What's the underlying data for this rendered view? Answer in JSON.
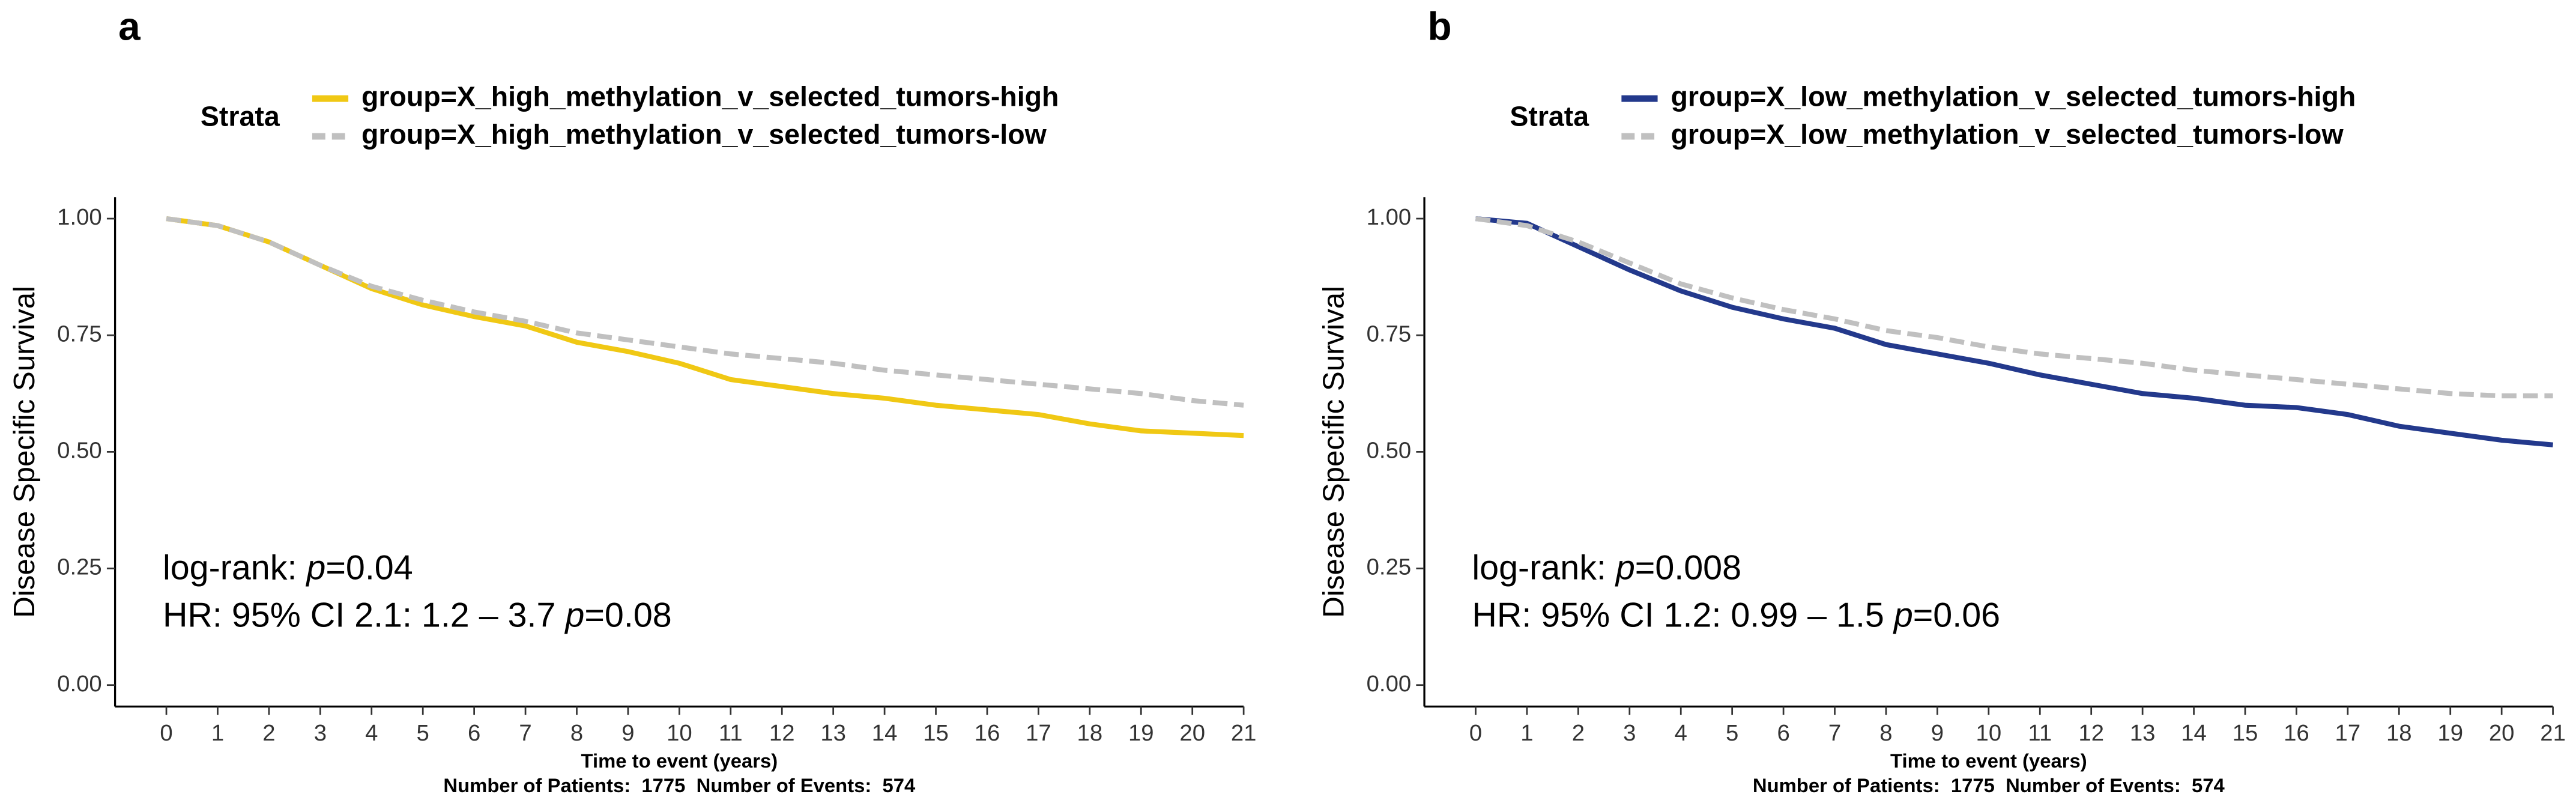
{
  "chart_data": [
    {
      "type": "line",
      "panel_label": "a",
      "legend_title": "Strata",
      "xlabel": "Time to event (years)",
      "ylabel": "Disease Specific Survival",
      "caption": "Number of Patients:  1775  Number of Events:  574",
      "annotations": [
        [
          "log-rank: ",
          "p",
          "=0.04"
        ],
        [
          "HR: 95% CI 2.1: 1.2 – 3.7 ",
          "p",
          "=0.08"
        ]
      ],
      "x": [
        0,
        1,
        2,
        3,
        4,
        5,
        6,
        7,
        8,
        9,
        10,
        11,
        12,
        13,
        14,
        15,
        16,
        17,
        18,
        19,
        20,
        21
      ],
      "series": [
        {
          "name": "group=X_high_methylation_v_selected_tumors-high",
          "color": "#f0c814",
          "linestyle": "solid",
          "values": [
            1.0,
            0.985,
            0.95,
            0.9,
            0.85,
            0.815,
            0.79,
            0.77,
            0.735,
            0.715,
            0.69,
            0.655,
            0.64,
            0.625,
            0.615,
            0.6,
            0.59,
            0.58,
            0.56,
            0.545,
            0.54,
            0.535
          ]
        },
        {
          "name": "group=X_high_methylation_v_selected_tumors-low",
          "color": "#c0c0c0",
          "linestyle": "dashed",
          "values": [
            1.0,
            0.985,
            0.95,
            0.9,
            0.855,
            0.825,
            0.8,
            0.78,
            0.755,
            0.74,
            0.725,
            0.71,
            0.7,
            0.69,
            0.675,
            0.665,
            0.655,
            0.645,
            0.635,
            0.625,
            0.61,
            0.6
          ]
        }
      ],
      "xlim": [
        -1,
        21
      ],
      "ylim": [
        -0.046,
        1.046
      ],
      "xticks": [
        0,
        1,
        2,
        3,
        4,
        5,
        6,
        7,
        8,
        9,
        10,
        11,
        12,
        13,
        14,
        15,
        16,
        17,
        18,
        19,
        20,
        21
      ],
      "yticks": [
        {
          "value": 0,
          "label": "0.00"
        },
        {
          "value": 0.25,
          "label": "0.25"
        },
        {
          "value": 0.5,
          "label": "0.50"
        },
        {
          "value": 0.75,
          "label": "0.75"
        },
        {
          "value": 1,
          "label": "1.00"
        }
      ]
    },
    {
      "type": "line",
      "panel_label": "b",
      "legend_title": "Strata",
      "xlabel": "Time to event (years)",
      "ylabel": "Disease Specific Survival",
      "caption": "Number of Patients:  1775  Number of Events:  574",
      "annotations": [
        [
          "log-rank: ",
          "p",
          "=0.008"
        ],
        [
          "HR: 95% CI 1.2: 0.99 – 1.5 ",
          "p",
          "=0.06"
        ]
      ],
      "x": [
        0,
        1,
        2,
        3,
        4,
        5,
        6,
        7,
        8,
        9,
        10,
        11,
        12,
        13,
        14,
        15,
        16,
        17,
        18,
        19,
        20,
        21
      ],
      "series": [
        {
          "name": "group=X_low_methylation_v_selected_tumors-high",
          "color": "#23398c",
          "linestyle": "solid",
          "values": [
            1.0,
            0.99,
            0.94,
            0.89,
            0.845,
            0.81,
            0.785,
            0.765,
            0.73,
            0.71,
            0.69,
            0.665,
            0.645,
            0.625,
            0.615,
            0.6,
            0.595,
            0.58,
            0.555,
            0.54,
            0.525,
            0.515
          ]
        },
        {
          "name": "group=X_low_methylation_v_selected_tumors-low",
          "color": "#c0c0c0",
          "linestyle": "dashed",
          "values": [
            1.0,
            0.985,
            0.95,
            0.905,
            0.86,
            0.83,
            0.805,
            0.785,
            0.76,
            0.745,
            0.725,
            0.71,
            0.7,
            0.69,
            0.675,
            0.665,
            0.655,
            0.645,
            0.635,
            0.625,
            0.62,
            0.62
          ]
        }
      ],
      "xlim": [
        -1,
        21
      ],
      "ylim": [
        -0.046,
        1.046
      ],
      "xticks": [
        0,
        1,
        2,
        3,
        4,
        5,
        6,
        7,
        8,
        9,
        10,
        11,
        12,
        13,
        14,
        15,
        16,
        17,
        18,
        19,
        20,
        21
      ],
      "yticks": [
        {
          "value": 0,
          "label": "0.00"
        },
        {
          "value": 0.25,
          "label": "0.25"
        },
        {
          "value": 0.5,
          "label": "0.50"
        },
        {
          "value": 0.75,
          "label": "0.75"
        },
        {
          "value": 1,
          "label": "1.00"
        }
      ]
    }
  ]
}
